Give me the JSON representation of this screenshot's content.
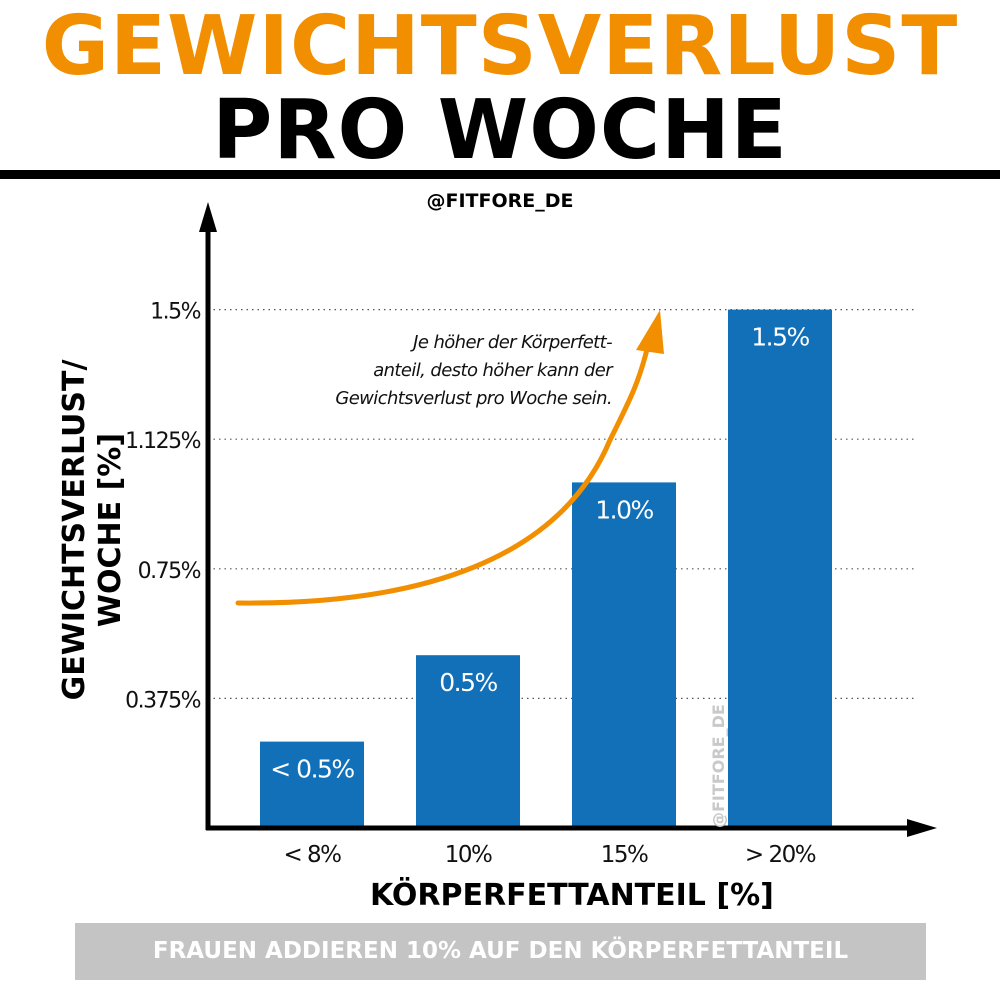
{
  "header": {
    "title_line1": "GEWICHTSVERLUST",
    "title_line2": "PRO WOCHE",
    "handle": "@FITFORE_DE",
    "title_color": "#f28f00",
    "text_color": "#000000"
  },
  "chart_data": {
    "type": "bar",
    "categories": [
      "< 8%",
      "10%",
      "15%",
      "> 20%"
    ],
    "values": [
      0.25,
      0.5,
      1.0,
      1.5
    ],
    "data_labels": [
      "< 0.5%",
      "0.5%",
      "1.0%",
      "1.5%"
    ],
    "ylabel": "GEWICHTSVERLUST/ WOCHE [%]",
    "xlabel": "KÖRPERFETTANTEIL [%]",
    "ylim": [
      0,
      1.875
    ],
    "y_ticks": [
      0.375,
      0.75,
      1.125,
      1.5
    ],
    "y_tick_labels": [
      "0.375%",
      "0.75%",
      "1.125%",
      "1.5%"
    ],
    "grid": "dotted horizontal",
    "bar_color": "#1170b8",
    "annotation": "Je höher der Körperfett- anteil, desto höher kann der Gewichtsverlust pro Woche sein.",
    "annotation_lines": [
      "Je höher der Körperfett-",
      "anteil, desto höher kann der",
      "Gewichtsverlust pro Woche sein."
    ],
    "arrow_color": "#f28f00",
    "watermark": "@FITFORE_DE"
  },
  "footer": {
    "note": "FRAUEN ADDIEREN 10% AUF DEN KÖRPERFETTANTEIL"
  }
}
